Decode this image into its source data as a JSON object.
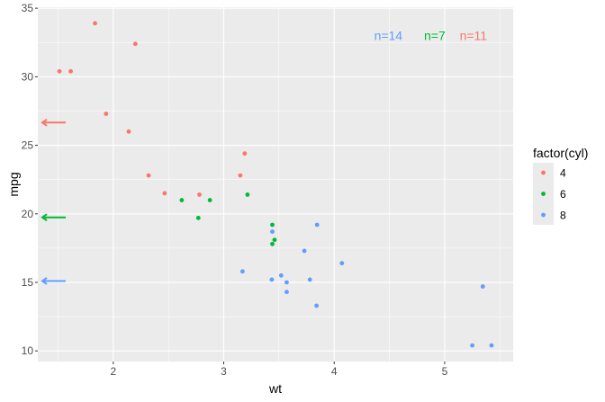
{
  "chart_data": {
    "type": "scatter",
    "xlabel": "wt",
    "ylabel": "mpg",
    "xlim": [
      1.317,
      5.62
    ],
    "ylim": [
      9.225,
      35.075
    ],
    "x_ticks": [
      2,
      3,
      4,
      5
    ],
    "y_ticks": [
      10,
      15,
      20,
      25,
      30,
      35
    ],
    "grid": true,
    "legend": {
      "title": "factor(cyl)",
      "position": "right",
      "entries": [
        "4",
        "6",
        "8"
      ]
    },
    "colors": {
      "4": "#F8766D",
      "6": "#00BA38",
      "8": "#619CFF"
    },
    "points": [
      {
        "wt": 2.62,
        "mpg": 21.0,
        "cyl": "6"
      },
      {
        "wt": 2.875,
        "mpg": 21.0,
        "cyl": "6"
      },
      {
        "wt": 2.32,
        "mpg": 22.8,
        "cyl": "4"
      },
      {
        "wt": 3.215,
        "mpg": 21.4,
        "cyl": "6"
      },
      {
        "wt": 3.44,
        "mpg": 18.7,
        "cyl": "8"
      },
      {
        "wt": 3.46,
        "mpg": 18.1,
        "cyl": "6"
      },
      {
        "wt": 3.57,
        "mpg": 14.3,
        "cyl": "8"
      },
      {
        "wt": 3.19,
        "mpg": 24.4,
        "cyl": "4"
      },
      {
        "wt": 3.15,
        "mpg": 22.8,
        "cyl": "4"
      },
      {
        "wt": 3.44,
        "mpg": 19.2,
        "cyl": "6"
      },
      {
        "wt": 3.44,
        "mpg": 17.8,
        "cyl": "6"
      },
      {
        "wt": 4.07,
        "mpg": 16.4,
        "cyl": "8"
      },
      {
        "wt": 3.73,
        "mpg": 17.3,
        "cyl": "8"
      },
      {
        "wt": 3.78,
        "mpg": 15.2,
        "cyl": "8"
      },
      {
        "wt": 5.25,
        "mpg": 10.4,
        "cyl": "8"
      },
      {
        "wt": 5.424,
        "mpg": 10.4,
        "cyl": "8"
      },
      {
        "wt": 5.345,
        "mpg": 14.7,
        "cyl": "8"
      },
      {
        "wt": 2.2,
        "mpg": 32.4,
        "cyl": "4"
      },
      {
        "wt": 1.615,
        "mpg": 30.4,
        "cyl": "4"
      },
      {
        "wt": 1.835,
        "mpg": 33.9,
        "cyl": "4"
      },
      {
        "wt": 2.465,
        "mpg": 21.5,
        "cyl": "4"
      },
      {
        "wt": 3.52,
        "mpg": 15.5,
        "cyl": "8"
      },
      {
        "wt": 3.435,
        "mpg": 15.2,
        "cyl": "8"
      },
      {
        "wt": 3.84,
        "mpg": 13.3,
        "cyl": "8"
      },
      {
        "wt": 3.845,
        "mpg": 19.2,
        "cyl": "8"
      },
      {
        "wt": 1.935,
        "mpg": 27.3,
        "cyl": "4"
      },
      {
        "wt": 2.14,
        "mpg": 26.0,
        "cyl": "4"
      },
      {
        "wt": 1.513,
        "mpg": 30.4,
        "cyl": "4"
      },
      {
        "wt": 3.17,
        "mpg": 15.8,
        "cyl": "8"
      },
      {
        "wt": 2.77,
        "mpg": 19.7,
        "cyl": "6"
      },
      {
        "wt": 3.57,
        "mpg": 15.0,
        "cyl": "8"
      },
      {
        "wt": 2.78,
        "mpg": 21.4,
        "cyl": "4"
      }
    ],
    "mean_arrows": [
      {
        "cyl": "4",
        "mpg": 26.66
      },
      {
        "cyl": "6",
        "mpg": 19.74
      },
      {
        "cyl": "8",
        "mpg": 15.1
      }
    ],
    "annotations": [
      {
        "text": "n=14",
        "cyl": "8",
        "wt": 4.49,
        "mpg": 33
      },
      {
        "text": "n=7",
        "cyl": "6",
        "wt": 4.91,
        "mpg": 33
      },
      {
        "text": "n=11",
        "cyl": "4",
        "wt": 5.26,
        "mpg": 33
      }
    ]
  }
}
